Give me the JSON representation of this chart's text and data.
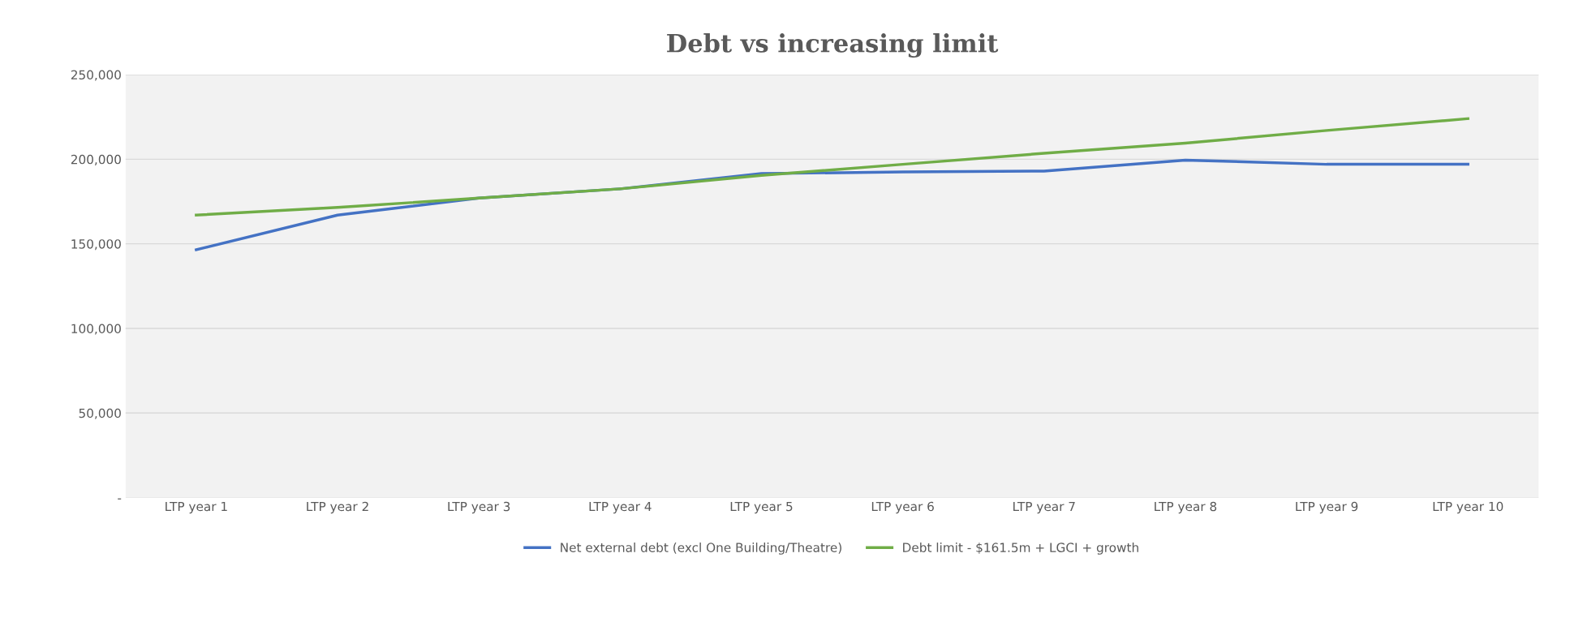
{
  "chart_data": {
    "type": "line",
    "title": "Debt vs increasing limit",
    "categories": [
      "LTP year 1",
      "LTP year 2",
      "LTP year 3",
      "LTP year 4",
      "LTP year 5",
      "LTP year 6",
      "LTP year 7",
      "LTP year 8",
      "LTP year 9",
      "LTP year 10"
    ],
    "series": [
      {
        "name": "Net external debt (excl One Building/Theatre)",
        "color": "#4472c4",
        "values": [
          146500,
          167000,
          177000,
          182500,
          191500,
          192500,
          193000,
          199500,
          197000,
          197000
        ]
      },
      {
        "name": "Debt limit - $161.5m + LGCI + growth",
        "color": "#70ad47",
        "values": [
          167000,
          171500,
          177000,
          182500,
          190500,
          197000,
          203500,
          209500,
          217000,
          224000
        ]
      }
    ],
    "ylim": [
      0,
      250000
    ],
    "yticks": [
      {
        "value": 0,
        "label": "-"
      },
      {
        "value": 50000,
        "label": "50,000"
      },
      {
        "value": 100000,
        "label": "100,000"
      },
      {
        "value": 150000,
        "label": "150,000"
      },
      {
        "value": 200000,
        "label": "200,000"
      },
      {
        "value": 250000,
        "label": "250,000"
      }
    ],
    "grid": true,
    "legend": "bottom",
    "marker": "none",
    "line_style": "solid"
  }
}
